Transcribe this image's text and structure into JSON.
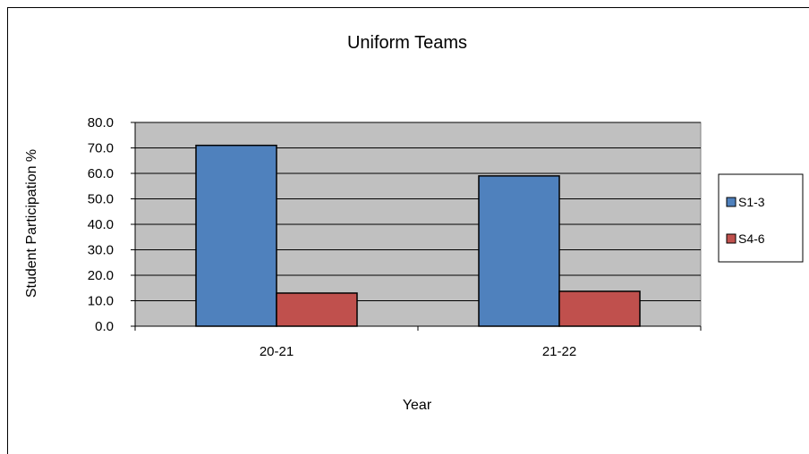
{
  "chart_data": {
    "type": "bar",
    "title": "Uniform Teams",
    "xlabel": "Year",
    "ylabel": "Student Participation %",
    "categories": [
      "20-21",
      "21-22"
    ],
    "series": [
      {
        "name": "S1-3",
        "values": [
          71.0,
          59.0
        ],
        "color": "#4f81bd"
      },
      {
        "name": "S4-6",
        "values": [
          13.0,
          13.7
        ],
        "color": "#c0504d"
      }
    ],
    "yticks": [
      "0.0",
      "10.0",
      "20.0",
      "30.0",
      "40.0",
      "50.0",
      "60.0",
      "70.0",
      "80.0"
    ],
    "ylim": [
      0,
      80
    ],
    "grid": true,
    "plot_background": "#c0c0c0",
    "legend_position": "right"
  }
}
